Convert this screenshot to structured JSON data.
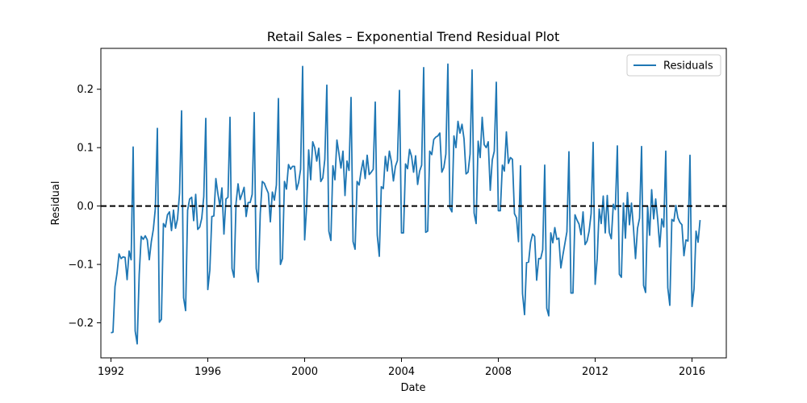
{
  "chart_data": {
    "type": "line",
    "title": "Retail Sales – Exponential Trend Residual Plot",
    "xlabel": "Date",
    "ylabel": "Residual",
    "x_start": "1992-01",
    "frequency": "monthly",
    "xlim": [
      "1991-08",
      "2017-06"
    ],
    "ylim": [
      -0.26,
      0.27
    ],
    "x_ticks": [
      "1992",
      "1996",
      "2000",
      "2004",
      "2008",
      "2012",
      "2016"
    ],
    "y_ticks": [
      "−0.2",
      "−0.1",
      "0.0",
      "0.1",
      "0.2"
    ],
    "y_tick_values": [
      -0.2,
      -0.1,
      0.0,
      0.1,
      0.2
    ],
    "reference_line": {
      "y": 0.0,
      "style": "dashed",
      "color": "#000000"
    },
    "legend": {
      "position": "top-right"
    },
    "grid": false,
    "series": [
      {
        "name": "Residuals",
        "color": "#1f77b4",
        "values": [
          -0.217,
          -0.216,
          -0.138,
          -0.115,
          -0.082,
          -0.09,
          -0.087,
          -0.088,
          -0.126,
          -0.077,
          -0.092,
          0.101,
          -0.214,
          -0.236,
          -0.117,
          -0.052,
          -0.057,
          -0.051,
          -0.058,
          -0.092,
          -0.061,
          -0.04,
          -0.004,
          0.133,
          -0.199,
          -0.194,
          -0.03,
          -0.036,
          -0.015,
          -0.01,
          -0.042,
          -0.007,
          -0.038,
          -0.022,
          0.022,
          0.163,
          -0.157,
          -0.179,
          -0.007,
          0.012,
          0.015,
          -0.025,
          0.02,
          -0.04,
          -0.036,
          -0.021,
          0.016,
          0.15,
          -0.143,
          -0.11,
          -0.018,
          -0.017,
          0.047,
          0.021,
          0.0,
          0.031,
          -0.048,
          0.012,
          0.015,
          0.152,
          -0.107,
          -0.122,
          0.005,
          0.038,
          0.011,
          0.021,
          0.032,
          -0.018,
          0.006,
          0.006,
          0.02,
          0.16,
          -0.107,
          -0.13,
          -0.013,
          0.042,
          0.039,
          0.03,
          0.022,
          -0.027,
          0.024,
          0.01,
          0.036,
          0.184,
          -0.1,
          -0.09,
          0.042,
          0.029,
          0.071,
          0.063,
          0.068,
          0.068,
          0.028,
          0.04,
          0.063,
          0.239,
          -0.058,
          0.0,
          0.096,
          0.045,
          0.11,
          0.1,
          0.077,
          0.099,
          0.042,
          0.048,
          0.08,
          0.207,
          -0.043,
          -0.059,
          0.069,
          0.045,
          0.113,
          0.09,
          0.065,
          0.094,
          0.018,
          0.077,
          0.061,
          0.186,
          -0.061,
          -0.074,
          0.042,
          0.036,
          0.06,
          0.078,
          0.047,
          0.087,
          0.054,
          0.058,
          0.063,
          0.178,
          -0.05,
          -0.086,
          0.033,
          0.03,
          0.085,
          0.06,
          0.094,
          0.076,
          0.043,
          0.068,
          0.078,
          0.198,
          -0.046,
          -0.046,
          0.072,
          0.064,
          0.097,
          0.085,
          0.058,
          0.086,
          0.037,
          0.06,
          0.07,
          0.237,
          -0.045,
          -0.043,
          0.094,
          0.088,
          0.114,
          0.118,
          0.12,
          0.125,
          0.058,
          0.066,
          0.089,
          0.243,
          -0.003,
          -0.01,
          0.12,
          0.1,
          0.145,
          0.125,
          0.14,
          0.115,
          0.055,
          0.058,
          0.089,
          0.233,
          -0.012,
          -0.03,
          0.111,
          0.083,
          0.152,
          0.105,
          0.1,
          0.11,
          0.027,
          0.079,
          0.094,
          0.212,
          -0.008,
          -0.008,
          0.07,
          0.06,
          0.127,
          0.073,
          0.083,
          0.08,
          -0.013,
          -0.02,
          -0.061,
          0.069,
          -0.15,
          -0.186,
          -0.097,
          -0.096,
          -0.062,
          -0.048,
          -0.052,
          -0.127,
          -0.09,
          -0.09,
          -0.075,
          0.07,
          -0.175,
          -0.188,
          -0.046,
          -0.063,
          -0.037,
          -0.057,
          -0.055,
          -0.106,
          -0.084,
          -0.064,
          -0.044,
          0.093,
          -0.149,
          -0.149,
          -0.015,
          -0.024,
          -0.031,
          -0.049,
          -0.01,
          -0.066,
          -0.06,
          -0.043,
          -0.013,
          0.109,
          -0.134,
          -0.09,
          -0.005,
          -0.03,
          0.017,
          -0.046,
          0.018,
          -0.045,
          -0.056,
          0.003,
          -0.006,
          0.103,
          -0.117,
          -0.122,
          0.005,
          -0.055,
          0.023,
          -0.032,
          0.005,
          -0.038,
          -0.09,
          -0.038,
          -0.021,
          0.102,
          -0.136,
          -0.148,
          0.0,
          -0.05,
          0.028,
          -0.022,
          0.012,
          -0.023,
          -0.07,
          -0.022,
          -0.036,
          0.094,
          -0.14,
          -0.17,
          -0.023,
          -0.026,
          0.001,
          -0.02,
          -0.028,
          -0.032,
          -0.085,
          -0.058,
          -0.06,
          0.087,
          -0.172,
          -0.142,
          -0.043,
          -0.062,
          -0.024
        ]
      }
    ]
  }
}
